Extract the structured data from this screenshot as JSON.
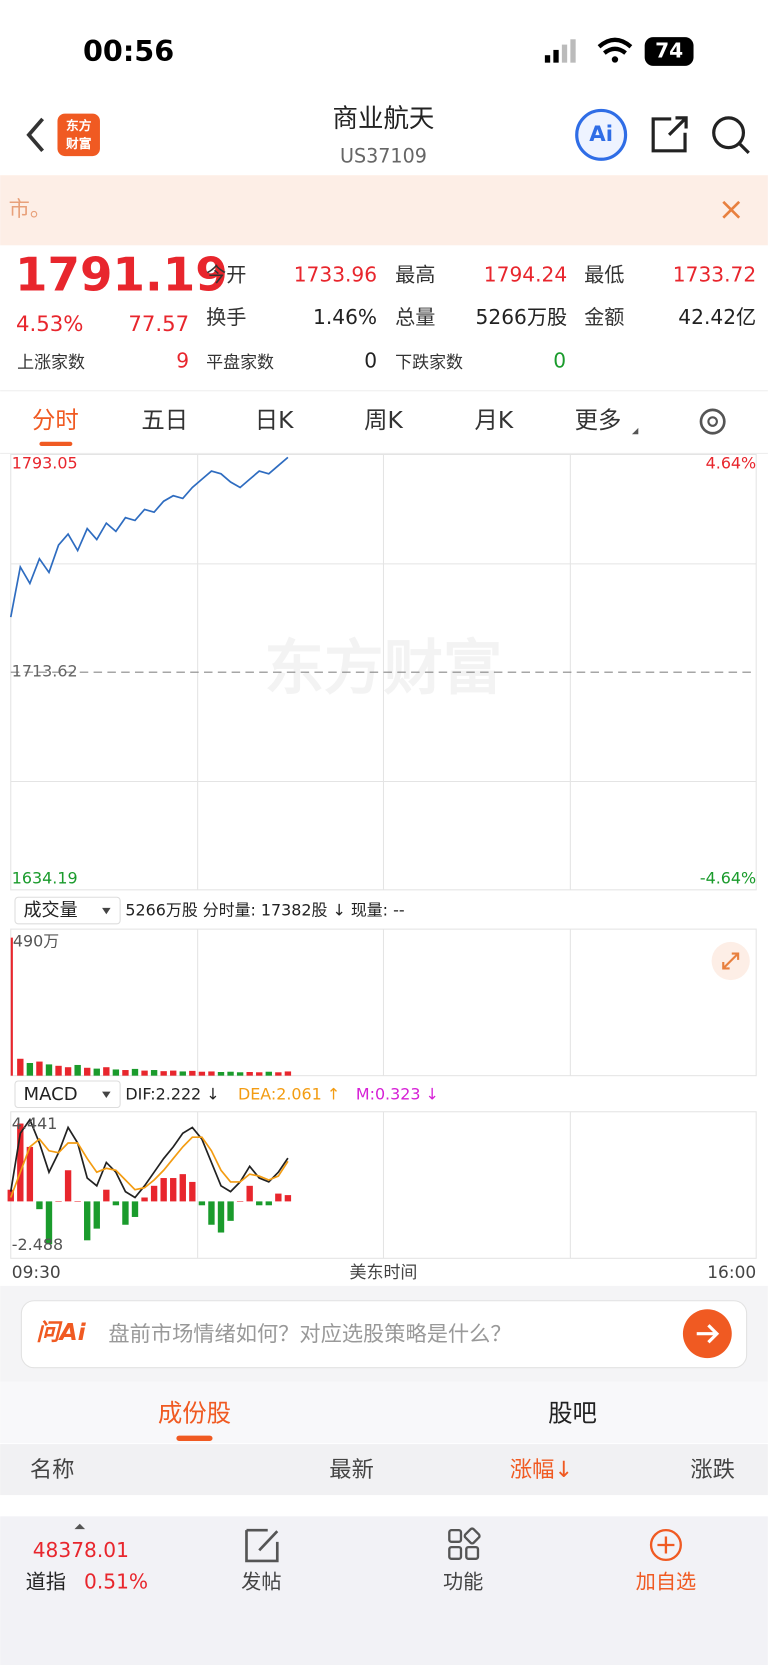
{
  "status_bar": {
    "time": "00:56",
    "battery": "74"
  },
  "header": {
    "logo": [
      "东方",
      "财富"
    ],
    "title": "商业航天",
    "code": "US37109",
    "ai_button": "Ai"
  },
  "notice": {
    "text": "市。"
  },
  "quote": {
    "price": "1791.19",
    "change_pct": "4.53%",
    "change": "77.57",
    "fields": [
      {
        "label": "今开",
        "value": "1733.96"
      },
      {
        "label": "最高",
        "value": "1794.24"
      },
      {
        "label": "最低",
        "value": "1733.72"
      },
      {
        "label": "换手",
        "value": "1.46%"
      },
      {
        "label": "总量",
        "value": "5266万股"
      },
      {
        "label": "金额",
        "value": "42.42亿"
      }
    ],
    "counts": [
      {
        "label": "上涨家数",
        "value": "9"
      },
      {
        "label": "平盘家数",
        "value": "0"
      },
      {
        "label": "下跌家数",
        "value": "0"
      }
    ]
  },
  "tabs": [
    "分时",
    "五日",
    "日K",
    "周K",
    "月K",
    "更多"
  ],
  "price_chart": {
    "ylim": [
      1634.19,
      1793.05
    ],
    "base": 1713.62,
    "pct_top": "4.64%",
    "pct_bottom": "-4.64%",
    "watermark": "东方财富",
    "values": [
      1733.7,
      1752,
      1746,
      1755,
      1750,
      1760,
      1764,
      1758,
      1766,
      1762,
      1768,
      1765,
      1770,
      1769,
      1773,
      1772,
      1776,
      1778,
      1777,
      1781,
      1784,
      1787,
      1786,
      1783,
      1781,
      1784,
      1787,
      1786,
      1789,
      1792
    ]
  },
  "volume_chart": {
    "selector": "成交量",
    "summary": "5266万股 分时量: 17382股 ↓ 现量: --",
    "ymax": {
      "value": 490,
      "label": "490万"
    },
    "values": [
      490,
      60,
      45,
      50,
      40,
      35,
      30,
      38,
      28,
      25,
      30,
      22,
      20,
      24,
      18,
      20,
      16,
      18,
      15,
      17,
      14,
      15,
      13,
      14,
      12,
      13,
      12,
      14,
      12,
      15
    ]
  },
  "macd_chart": {
    "selector": "MACD",
    "dif_label": "DIF:2.222 ↓",
    "dea_label": "DEA:2.061 ↑",
    "m_label": "M:0.323 ↓",
    "ylim": [
      -2.488,
      4.441
    ],
    "dif": [
      0.5,
      3.5,
      4.2,
      3.0,
      1.5,
      2.5,
      3.8,
      3.0,
      1.2,
      0.8,
      2.0,
      1.5,
      0.5,
      0.2,
      0.8,
      1.5,
      2.2,
      2.8,
      3.5,
      3.8,
      3.2,
      2.0,
      0.8,
      0.5,
      1.0,
      1.8,
      1.2,
      1.0,
      1.5,
      2.222
    ],
    "dea": [
      0.2,
      1.5,
      2.8,
      3.2,
      2.6,
      2.5,
      3.0,
      3.0,
      2.2,
      1.5,
      1.7,
      1.6,
      1.1,
      0.6,
      0.7,
      1.1,
      1.6,
      2.2,
      2.8,
      3.3,
      3.3,
      2.6,
      1.6,
      1.0,
      1.0,
      1.4,
      1.3,
      1.1,
      1.3,
      2.061
    ],
    "m": [
      0.6,
      4.0,
      2.8,
      -0.4,
      -2.2,
      0,
      1.6,
      0,
      -2.0,
      -1.4,
      0.6,
      -0.2,
      -1.2,
      -0.8,
      0.2,
      0.8,
      1.2,
      1.2,
      1.4,
      1.0,
      -0.2,
      -1.2,
      -1.6,
      -1.0,
      0,
      0.8,
      -0.2,
      -0.2,
      0.4,
      0.323
    ]
  },
  "time_axis": {
    "start": "09:30",
    "label": "美东时间",
    "end": "16:00"
  },
  "ai_bar": {
    "logo": "问Ai",
    "placeholder": "盘前市场情绪如何？对应选股策略是什么？"
  },
  "section_tabs": [
    "成份股",
    "股吧"
  ],
  "table_header": [
    "名称",
    "最新",
    "涨幅↓",
    "涨跌"
  ],
  "bottom_nav": {
    "index_value": "48378.01",
    "index_name": "道指",
    "index_change": "0.51%",
    "items": [
      "发帖",
      "功能",
      "加自选"
    ]
  }
}
